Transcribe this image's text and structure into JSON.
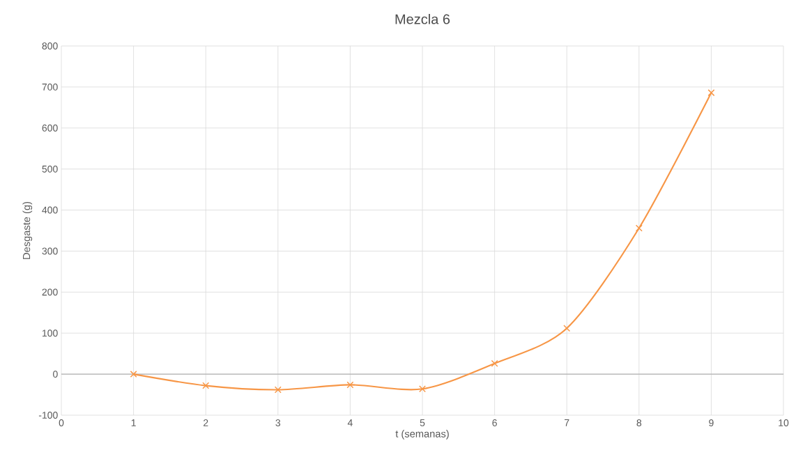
{
  "chart_data": {
    "type": "line",
    "title": "Mezcla 6",
    "xlabel": "t (semanas)",
    "ylabel": "Desgaste (g)",
    "x": [
      1,
      2,
      3,
      4,
      5,
      6,
      7,
      8,
      9
    ],
    "series": [
      {
        "color": "#f79646",
        "values": [
          0,
          -28,
          -38,
          -26,
          -36,
          26,
          112,
          356,
          686
        ]
      }
    ],
    "xlim": [
      0,
      10
    ],
    "ylim": [
      -100,
      800
    ],
    "xticks": [
      0,
      1,
      2,
      3,
      4,
      5,
      6,
      7,
      8,
      9,
      10
    ],
    "yticks": [
      -100,
      0,
      100,
      200,
      300,
      400,
      500,
      600,
      700,
      800
    ],
    "grid": true,
    "marker": "cross",
    "line_style": "solid"
  }
}
